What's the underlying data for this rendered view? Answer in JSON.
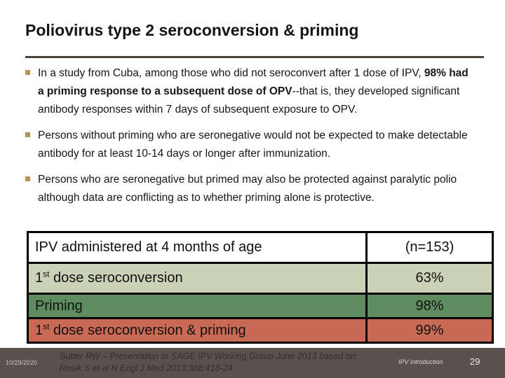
{
  "slide": {
    "title": "Poliovirus type 2 seroconversion & priming",
    "bullets": [
      {
        "pre": "In a study from Cuba, among those who did not seroconvert after 1 dose of IPV, ",
        "bold": "98% had a priming response to a subsequent dose of OPV",
        "post": "--that is, they developed significant antibody responses within 7 days of subsequent exposure to OPV."
      },
      {
        "pre": "Persons without priming who are seronegative would not be expected to make detectable antibody for at least 10-14 days or longer after immunization.",
        "bold": "",
        "post": ""
      },
      {
        "pre": "Persons who are seronegative but primed may also be protected against paralytic polio although data are conflicting as to whether priming alone is protective.",
        "bold": "",
        "post": ""
      }
    ],
    "table": {
      "header": {
        "label": "IPV administered at 4 months of age",
        "value": "(n=153)"
      },
      "rows": [
        {
          "label_pre": "1",
          "label_sup": "st",
          "label_post": " dose seroconversion",
          "value": "63%",
          "bg": "#ccd2b8"
        },
        {
          "label_pre": "Priming",
          "label_sup": "",
          "label_post": "",
          "value": "98%",
          "bg": "#5e8c60"
        },
        {
          "label_pre": "1",
          "label_sup": "st",
          "label_post": " dose seroconversion & priming",
          "value": "99%",
          "bg": "#c96a55"
        }
      ]
    },
    "footer": {
      "date": "10/29/2020",
      "citation_line1": "Sutter RW – Presentation to SAGE IPV Working Group June 2013 based on:",
      "citation_line2": "Resik S et al N Engl J Med 2013;368:416-24",
      "section": "IPV introduction",
      "page": "29"
    },
    "colors": {
      "bullet_marker": "#b29559",
      "title_rule": "#4a413e",
      "table_border": "#000000",
      "row_header_bg": "#ffffff",
      "row_seroconversion_bg": "#ccd2b8",
      "row_priming_bg": "#5e8c60",
      "row_combined_bg": "#c96a55",
      "footer_bg": "#5c504d"
    }
  }
}
